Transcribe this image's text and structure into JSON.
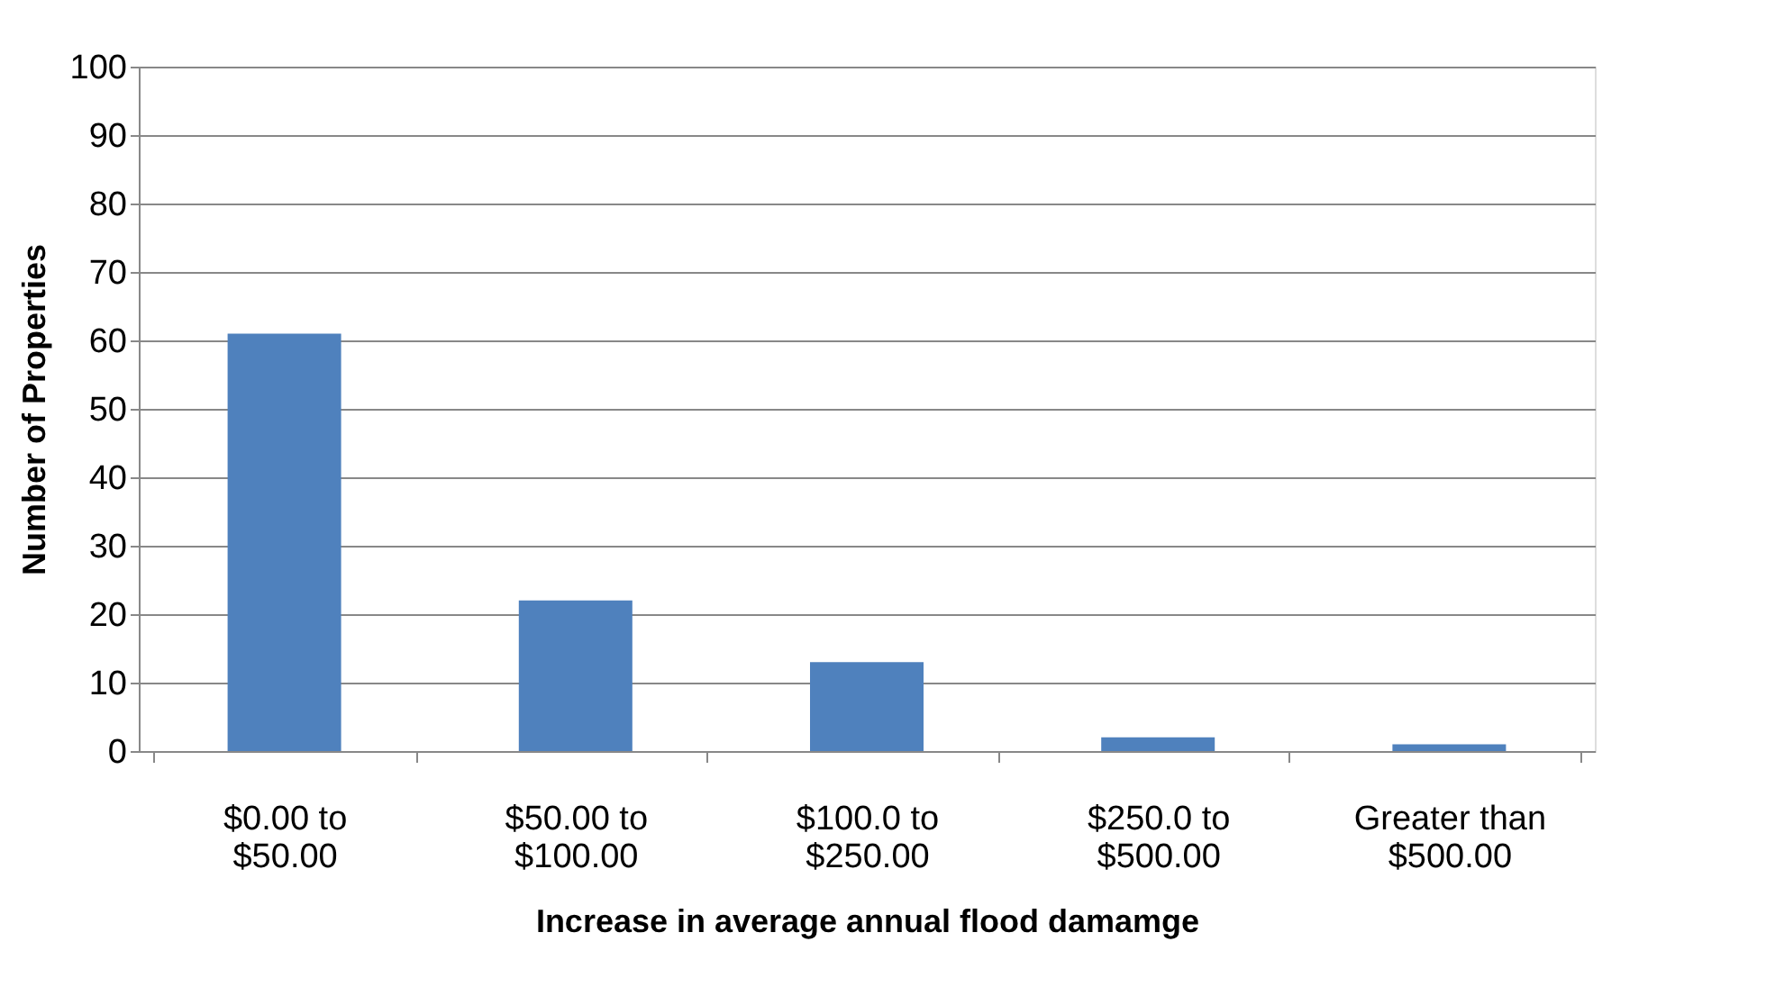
{
  "chart_data": {
    "type": "bar",
    "xlabel": "Increase in average annual flood damamge",
    "ylabel": "Number of Properties",
    "categories": [
      "$0.00 to $50.00",
      "$50.00 to $100.00",
      "$100.0 to $250.00",
      "$250.0 to $500.00",
      "Greater than $500.00"
    ],
    "values": [
      61,
      22,
      13,
      2,
      1
    ],
    "color": "#4f81bd",
    "ylim": [
      0,
      100
    ],
    "yticks": [
      0,
      10,
      20,
      30,
      40,
      50,
      60,
      70,
      80,
      90,
      100
    ],
    "grid": "y"
  }
}
